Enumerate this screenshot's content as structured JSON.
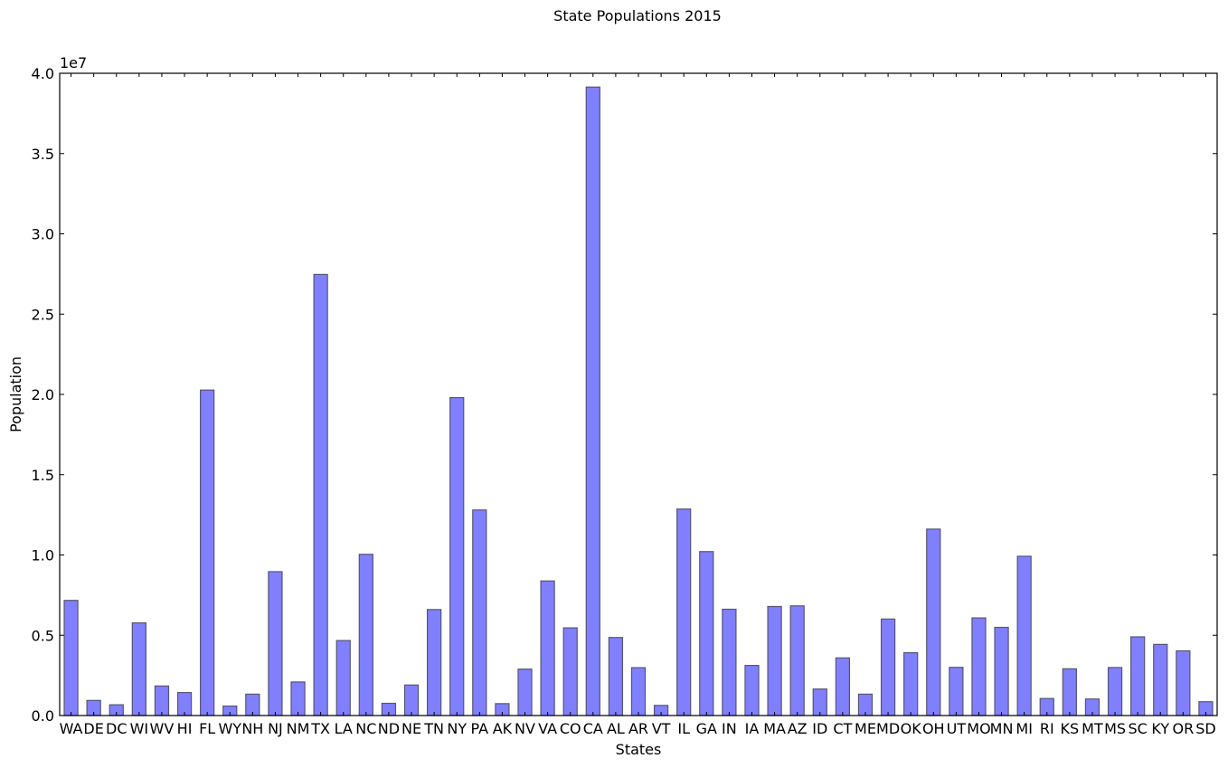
{
  "chart_data": {
    "type": "bar",
    "title": "State Populations 2015",
    "xlabel": "States",
    "ylabel": "Population",
    "y_offset_label": "1e7",
    "ylim": [
      0,
      40000000
    ],
    "yticks": [
      0,
      5000000,
      10000000,
      15000000,
      20000000,
      25000000,
      30000000,
      35000000,
      40000000
    ],
    "ytick_labels": [
      "0.0",
      "0.5",
      "1.0",
      "1.5",
      "2.0",
      "2.5",
      "3.0",
      "3.5",
      "4.0"
    ],
    "grid": false,
    "bar_color": "#8080ff",
    "bar_edge_color": "#555577",
    "categories": [
      "WA",
      "DE",
      "DC",
      "WI",
      "WV",
      "HI",
      "FL",
      "WY",
      "NH",
      "NJ",
      "NM",
      "TX",
      "LA",
      "NC",
      "ND",
      "NE",
      "TN",
      "NY",
      "PA",
      "AK",
      "NV",
      "VA",
      "CO",
      "CA",
      "AL",
      "AR",
      "VT",
      "IL",
      "GA",
      "IN",
      "IA",
      "MA",
      "AZ",
      "ID",
      "CT",
      "ME",
      "MD",
      "OK",
      "OH",
      "UT",
      "MO",
      "MN",
      "MI",
      "RI",
      "KS",
      "MT",
      "MS",
      "SC",
      "KY",
      "OR",
      "SD"
    ],
    "values": [
      7170000,
      940000,
      670000,
      5770000,
      1840000,
      1430000,
      20270000,
      590000,
      1330000,
      8960000,
      2090000,
      27470000,
      4670000,
      10040000,
      760000,
      1900000,
      6600000,
      19800000,
      12800000,
      740000,
      2890000,
      8380000,
      5460000,
      39140000,
      4860000,
      2980000,
      630000,
      12860000,
      10210000,
      6620000,
      3120000,
      6790000,
      6830000,
      1650000,
      3590000,
      1330000,
      6010000,
      3910000,
      11610000,
      3000000,
      6080000,
      5490000,
      9920000,
      1060000,
      2910000,
      1030000,
      2990000,
      4900000,
      4430000,
      4030000,
      860000
    ]
  }
}
